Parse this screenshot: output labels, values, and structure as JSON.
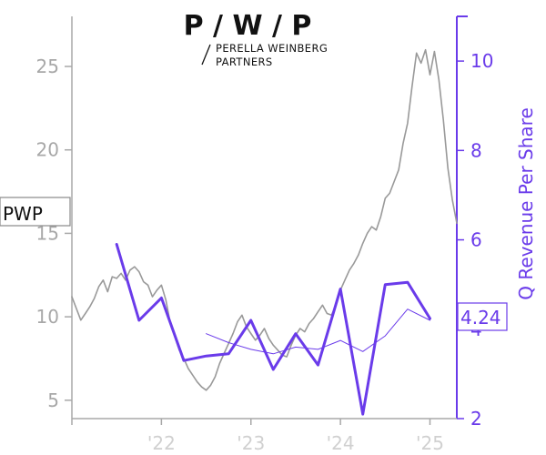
{
  "logo": {
    "mark": "P / W / P",
    "line1": "PERELLA WEINBERG",
    "line2": "PARTNERS"
  },
  "ticker": "PWP",
  "last_revenue_label": "4.24",
  "colors": {
    "price": "#999999",
    "revenue": "#6a3bea",
    "axis_left": "#a8a8a8",
    "axis_right": "#6a3bea",
    "label_border": "#888888"
  },
  "chart_data": {
    "type": "line",
    "xlabel": "",
    "x_ticks": [
      "'22",
      "'23",
      "'24",
      "'25"
    ],
    "x_range": [
      2021.0,
      2025.3
    ],
    "left_axis": {
      "label": "",
      "ticks": [
        5,
        10,
        15,
        20,
        25
      ],
      "ylim": [
        3.9,
        28.0
      ]
    },
    "right_axis": {
      "label": "Q Revenue Per Share",
      "ticks": [
        2,
        4,
        6,
        8,
        10
      ],
      "ylim": [
        2.0,
        11.0
      ]
    },
    "series": [
      {
        "axis": "left",
        "style": "thin grey",
        "x": [
          2021.0,
          2021.05,
          2021.1,
          2021.15,
          2021.2,
          2021.25,
          2021.3,
          2021.35,
          2021.4,
          2021.45,
          2021.5,
          2021.55,
          2021.6,
          2021.65,
          2021.7,
          2021.75,
          2021.8,
          2021.85,
          2021.9,
          2021.95,
          2022.0,
          2022.05,
          2022.1,
          2022.15,
          2022.2,
          2022.25,
          2022.3,
          2022.35,
          2022.4,
          2022.45,
          2022.5,
          2022.55,
          2022.6,
          2022.65,
          2022.7,
          2022.75,
          2022.8,
          2022.85,
          2022.9,
          2022.95,
          2023.0,
          2023.05,
          2023.1,
          2023.15,
          2023.2,
          2023.25,
          2023.3,
          2023.35,
          2023.4,
          2023.45,
          2023.5,
          2023.55,
          2023.6,
          2023.65,
          2023.7,
          2023.75,
          2023.8,
          2023.85,
          2023.9,
          2023.95,
          2024.0,
          2024.05,
          2024.1,
          2024.15,
          2024.2,
          2024.25,
          2024.3,
          2024.35,
          2024.4,
          2024.45,
          2024.5,
          2024.55,
          2024.6,
          2024.65,
          2024.7,
          2024.75,
          2024.8,
          2024.85,
          2024.9,
          2024.95,
          2025.0,
          2025.05,
          2025.1,
          2025.15,
          2025.2,
          2025.25,
          2025.3
        ],
        "values": [
          11.2,
          10.5,
          9.8,
          10.2,
          10.6,
          11.1,
          11.8,
          12.2,
          11.5,
          12.4,
          12.3,
          12.6,
          12.2,
          12.8,
          13.0,
          12.7,
          12.1,
          11.9,
          11.2,
          11.6,
          11.9,
          11.0,
          9.6,
          8.8,
          8.0,
          7.5,
          6.9,
          6.5,
          6.1,
          5.8,
          5.6,
          5.9,
          6.4,
          7.2,
          7.8,
          8.4,
          9.0,
          9.7,
          10.1,
          9.4,
          9.0,
          8.6,
          8.9,
          9.3,
          8.7,
          8.3,
          8.0,
          7.7,
          7.6,
          8.3,
          8.9,
          9.3,
          9.1,
          9.6,
          9.9,
          10.3,
          10.7,
          10.2,
          10.1,
          10.7,
          11.6,
          12.2,
          12.8,
          13.2,
          13.7,
          14.4,
          15.0,
          15.4,
          15.2,
          16.0,
          17.1,
          17.4,
          18.1,
          18.8,
          20.4,
          21.6,
          23.8,
          25.8,
          25.2,
          26.0,
          24.5,
          25.9,
          24.2,
          21.8,
          18.9,
          17.0,
          15.6
        ]
      },
      {
        "axis": "right",
        "style": "thick purple",
        "x": [
          2021.5,
          2021.75,
          2022.0,
          2022.25,
          2022.5,
          2022.75,
          2023.0,
          2023.25,
          2023.5,
          2023.75,
          2024.0,
          2024.25,
          2024.5,
          2024.75,
          2025.0
        ],
        "values": [
          5.9,
          4.2,
          4.7,
          3.3,
          3.4,
          3.45,
          4.2,
          3.1,
          3.9,
          3.2,
          4.9,
          2.1,
          5.0,
          5.05,
          4.24
        ]
      },
      {
        "axis": "right",
        "style": "thin purple",
        "x": [
          2022.5,
          2022.75,
          2023.0,
          2023.25,
          2023.5,
          2023.75,
          2024.0,
          2024.25,
          2024.5,
          2024.75,
          2025.0
        ],
        "values": [
          3.9,
          3.7,
          3.55,
          3.45,
          3.6,
          3.55,
          3.75,
          3.5,
          3.85,
          4.45,
          4.2
        ]
      }
    ]
  }
}
